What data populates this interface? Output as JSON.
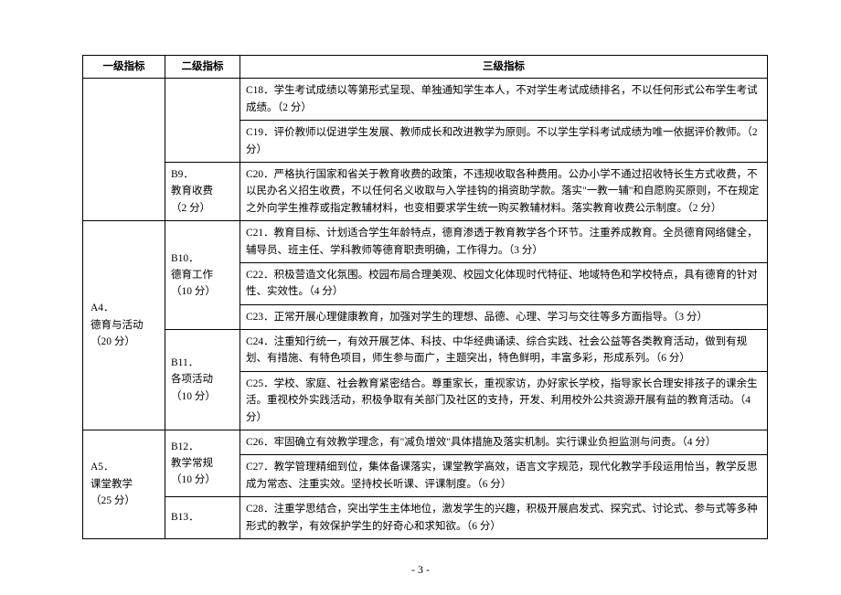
{
  "headers": {
    "col1": "一级指标",
    "col2": "二级指标",
    "col3": "三级指标"
  },
  "rows": [
    {
      "a": "",
      "b_items": [
        {
          "label": "",
          "c_items": [
            "C18．学生考试成绩以等第形式呈现、单独通知学生本人，不对学生考试成绩排名，不以任何形式公布学生考试成绩。（2 分）",
            "C19．评价教师以促进学生发展、教师成长和改进教学为原则。不以学生学科考试成绩为唯一依据评价教师。（2 分）"
          ]
        },
        {
          "label": "B9．\n教育收费\n（2 分）",
          "c_items": [
            "C20．严格执行国家和省关于教育收费的政策，不违规收取各种费用。公办小学不通过招收特长生方式收费，不以民办名义招生收费，不以任何名义收取与入学挂钩的捐资助学款。落实\"一教一辅\"和自愿购买原则，不在规定之外向学生推荐或指定教辅材料，也变相要求学生统一购买教辅材料。落实教育收费公示制度。（2 分）"
          ]
        }
      ]
    },
    {
      "a": "A4．\n德育与活动\n（20 分）",
      "b_items": [
        {
          "label": "B10．\n德育工作\n（10 分）",
          "c_items": [
            "C21．教育目标、计划适合学生年龄特点，德育渗透于教育教学各个环节。注重养成教育。全员德育网络健全，辅导员、班主任、学科教师等德育职责明确，工作得力。（3 分）",
            "C22．积极营造文化氛围。校园布局合理美观、校园文化体现时代特征、地域特色和学校特点，具有德育的针对性、实效性。（4 分）",
            "C23．正常开展心理健康教育，加强对学生的理想、品德、心理、学习与交往等多方面指导。（3 分）"
          ]
        },
        {
          "label": "B11．\n各项活动\n（10 分）",
          "c_items": [
            "C24．注重知行统一，有效开展艺体、科技、中华经典诵读、综合实践、社会公益等各类教育活动，做到有规划、有措施、有特色项目，师生参与面广，主题突出，特色鲜明，丰富多彩，形成系列。（6 分）",
            "C25．学校、家庭、社会教育紧密结合。尊重家长，重视家访，办好家长学校，指导家长合理安排孩子的课余生活。重视校外实践活动，积极争取有关部门及社区的支持，开发、利用校外公共资源开展有益的教育活动。（4 分）"
          ]
        }
      ]
    },
    {
      "a": "A5．\n课堂教学\n（25 分）",
      "b_items": [
        {
          "label": "B12．\n教学常规\n（10 分）",
          "c_items": [
            "C26．牢固确立有效教学理念，有\"减负增效\"具体措施及落实机制。实行课业负担监测与问责。（4 分）",
            "C27．教学管理精细到位，集体备课落实，课堂教学高效，语言文字规范，现代化教学手段运用恰当，教学反思成为常态、注重实效。坚持校长听课、评课制度。（6 分）"
          ]
        },
        {
          "label": "B13．",
          "c_items": [
            "C28．注重学思结合，突出学生主体地位，激发学生的兴趣，积极开展启发式、探究式、讨论式、参与式等多种形式的教学，有效保护学生的好奇心和求知欲。（6 分）"
          ]
        }
      ]
    }
  ],
  "footer": "- 3 -"
}
